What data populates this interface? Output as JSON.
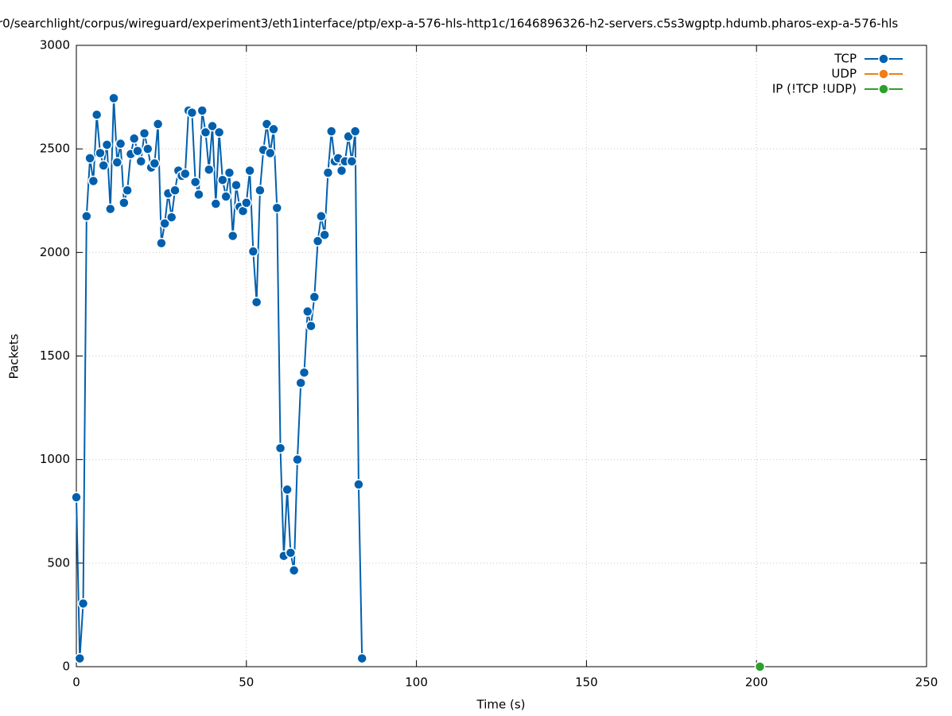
{
  "chart_data": {
    "type": "line",
    "title": "r0/searchlight/corpus/wireguard/experiment3/eth1interface/ptp/exp-a-576-hls-http1c/1646896326-h2-servers.c5s3wgptp.hdumb.pharos-exp-a-576-hls",
    "x_label": "Time (s)",
    "y_label": "Packets",
    "series": [
      {
        "name": "TCP",
        "color": "#0060ad",
        "x": [
          0,
          1,
          2,
          3,
          4,
          5,
          6,
          7,
          8,
          9,
          10,
          11,
          12,
          13,
          14,
          15,
          16,
          17,
          18,
          19,
          20,
          21,
          22,
          23,
          24,
          25,
          26,
          27,
          28,
          29,
          30,
          31,
          32,
          33,
          34,
          35,
          36,
          37,
          38,
          39,
          40,
          41,
          42,
          43,
          44,
          45,
          46,
          47,
          48,
          49,
          50,
          51,
          52,
          53,
          54,
          55,
          56,
          57,
          58,
          59,
          60,
          61,
          62,
          63,
          64,
          65,
          66,
          67,
          68,
          69,
          70,
          71,
          72,
          73,
          74,
          75,
          76,
          77,
          78,
          79,
          80,
          81,
          82,
          83,
          84
        ],
        "values": [
          818,
          40,
          305,
          2175,
          2455,
          2345,
          2665,
          2480,
          2420,
          2520,
          2210,
          2745,
          2435,
          2525,
          2240,
          2300,
          2475,
          2550,
          2490,
          2440,
          2575,
          2500,
          2410,
          2430,
          2620,
          2045,
          2140,
          2285,
          2170,
          2300,
          2395,
          2370,
          2380,
          2685,
          2675,
          2340,
          2280,
          2685,
          2580,
          2400,
          2610,
          2235,
          2580,
          2350,
          2270,
          2385,
          2080,
          2325,
          2220,
          2200,
          2240,
          2395,
          2005,
          1760,
          2300,
          2495,
          2620,
          2480,
          2595,
          2215,
          1055,
          535,
          855,
          550,
          465,
          1000,
          1370,
          1420,
          1715,
          1645,
          1785,
          2055,
          2175,
          2085,
          2385,
          2585,
          2440,
          2455,
          2395,
          2440,
          2560,
          2440,
          2585,
          880,
          40
        ]
      },
      {
        "name": "UDP",
        "color": "#ef7f16",
        "x": [],
        "values": []
      },
      {
        "name": "IP (!TCP  !UDP)",
        "color": "#2ca02c",
        "x": [
          201
        ],
        "values": [
          0
        ]
      }
    ],
    "xlim": [
      0,
      250
    ],
    "xticks": [
      0,
      50,
      100,
      150,
      200,
      250
    ],
    "ylim": [
      0,
      3000
    ],
    "yticks": [
      0,
      500,
      1000,
      1500,
      2000,
      2500,
      3000
    ],
    "grid": true,
    "legend": "top-right"
  }
}
